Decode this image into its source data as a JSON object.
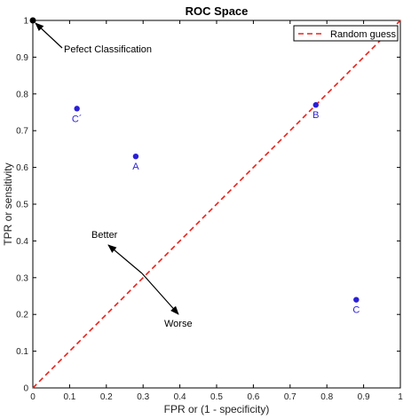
{
  "chart_data": {
    "type": "scatter",
    "title": "ROC Space",
    "xlabel": "FPR or (1 - specificity)",
    "ylabel": "TPR or sensitivity",
    "xlim": [
      0,
      1
    ],
    "ylim": [
      0,
      1
    ],
    "xticks": [
      "0",
      "0.1",
      "0.2",
      "0.3",
      "0.4",
      "0.5",
      "0.6",
      "0.7",
      "0.8",
      "0.9",
      "1"
    ],
    "yticks": [
      "0",
      "0.1",
      "0.2",
      "0.3",
      "0.4",
      "0.5",
      "0.6",
      "0.7",
      "0.8",
      "0.9",
      "1"
    ],
    "grid": false,
    "legend": {
      "placement": "top-right",
      "entries": [
        {
          "label": "Random guess",
          "color": "#e8221b",
          "style": "dashed"
        }
      ]
    },
    "reference_line": {
      "name": "Random guess",
      "points": [
        [
          0,
          0
        ],
        [
          1,
          1
        ]
      ],
      "color": "#e8221b"
    },
    "points": [
      {
        "label": "C´",
        "x": 0.12,
        "y": 0.76,
        "color": "#2a1fd6"
      },
      {
        "label": "A",
        "x": 0.28,
        "y": 0.63,
        "color": "#2a1fd6"
      },
      {
        "label": "B",
        "x": 0.77,
        "y": 0.77,
        "color": "#2a1fd6"
      },
      {
        "label": "C",
        "x": 0.88,
        "y": 0.24,
        "color": "#2a1fd6"
      }
    ],
    "perfect_point": {
      "x": 0,
      "y": 1,
      "color": "#000000"
    },
    "annotations": {
      "perfect": "Pefect Classification",
      "better": "Better",
      "worse": "Worse"
    }
  }
}
